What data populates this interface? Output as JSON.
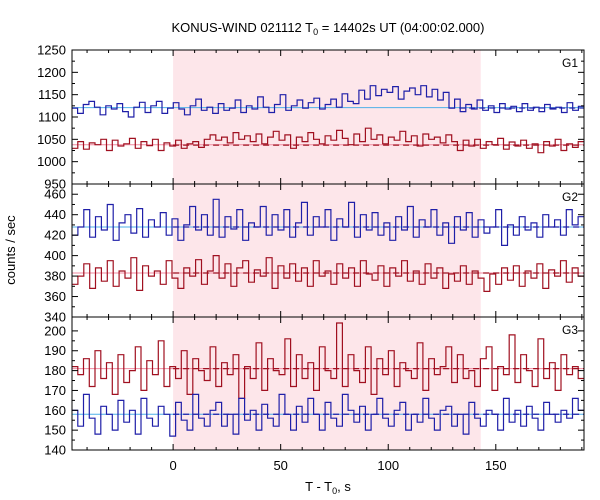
{
  "chart_data": {
    "type": "line",
    "title_main": "KONUS-WIND 021112 T",
    "title_sub": "0",
    "title_rest": " = 14402s UT (04:00:02.000)",
    "xlabel_main": "T - T",
    "xlabel_sub": "0",
    "xlabel_rest": ", s",
    "ylabel": "counts / sec",
    "xlim": [
      -47,
      191
    ],
    "x_ticks": [
      0,
      50,
      100,
      150
    ],
    "highlight_interval": [
      0,
      143
    ],
    "colors": {
      "blue": "#1f1fa8",
      "red": "#a01020",
      "bg_blue": "#4fb0e8",
      "bg_red": "#f08aa0",
      "highlight": "#fde6ea"
    },
    "panels": [
      {
        "label": "G1",
        "ylim": [
          950,
          1250
        ],
        "y_ticks": [
          950,
          1000,
          1050,
          1100,
          1150,
          1200,
          1250
        ],
        "series": [
          {
            "color": "blue",
            "background": 1121,
            "bg_dashed_from": 133,
            "bg_dashed_to": 191,
            "bg_dashed_value": 1120,
            "values": [
              1120,
              1108,
              1128,
              1135,
              1122,
              1105,
              1125,
              1118,
              1130,
              1112,
              1100,
              1122,
              1133,
              1110,
              1125,
              1135,
              1108,
              1120,
              1132,
              1118,
              1105,
              1125,
              1140,
              1115,
              1122,
              1108,
              1130,
              1115,
              1120,
              1138,
              1110,
              1125,
              1118,
              1145,
              1122,
              1110,
              1128,
              1150,
              1115,
              1125,
              1138,
              1120,
              1132,
              1142,
              1118,
              1128,
              1140,
              1122,
              1152,
              1135,
              1130,
              1160,
              1140,
              1170,
              1148,
              1162,
              1155,
              1168,
              1140,
              1158,
              1165,
              1150,
              1170,
              1145,
              1162,
              1138,
              1155,
              1120,
              1140,
              1112,
              1128,
              1118,
              1138,
              1115,
              1125,
              1110,
              1130,
              1118,
              1124,
              1112,
              1130,
              1115,
              1122,
              1112,
              1128,
              1118,
              1122,
              1110,
              1132,
              1115,
              1124
            ]
          },
          {
            "color": "red",
            "background": 1038,
            "bg_dashed_from": 0,
            "bg_dashed_to": 191,
            "bg_dashed_value": 1037,
            "values": [
              1030,
              1045,
              1028,
              1042,
              1038,
              1050,
              1025,
              1048,
              1035,
              1040,
              1052,
              1030,
              1045,
              1036,
              1050,
              1025,
              1042,
              1035,
              1048,
              1030,
              1040,
              1045,
              1032,
              1050,
              1060,
              1048,
              1055,
              1042,
              1065,
              1050,
              1058,
              1045,
              1062,
              1040,
              1055,
              1068,
              1048,
              1060,
              1030,
              1055,
              1045,
              1065,
              1050,
              1040,
              1058,
              1048,
              1070,
              1052,
              1038,
              1062,
              1045,
              1075,
              1050,
              1060,
              1040,
              1055,
              1048,
              1068,
              1045,
              1058,
              1035,
              1062,
              1050,
              1055,
              1042,
              1060,
              1045,
              1025,
              1048,
              1035,
              1050,
              1030,
              1045,
              1038,
              1052,
              1028,
              1044,
              1035,
              1048,
              1030,
              1040,
              1020,
              1045,
              1035,
              1050,
              1025,
              1040,
              1032,
              1045
            ]
          }
        ]
      },
      {
        "label": "G2",
        "ylim": [
          340,
          470
        ],
        "y_ticks": [
          340,
          360,
          380,
          400,
          420,
          440,
          460
        ],
        "series": [
          {
            "color": "blue",
            "background": 428,
            "bg_dashed_from": 0,
            "bg_dashed_to": 191,
            "bg_dashed_value": 428,
            "values": [
              420,
              428,
              445,
              418,
              438,
              425,
              450,
              415,
              432,
              440,
              422,
              446,
              418,
              435,
              428,
              442,
              420,
              436,
              415,
              430,
              448,
              425,
              440,
              420,
              455,
              418,
              438,
              426,
              445,
              415,
              432,
              428,
              448,
              420,
              440,
              425,
              445,
              418,
              432,
              452,
              420,
              438,
              428,
              445,
              415,
              436,
              428,
              452,
              418,
              440,
              425,
              442,
              420,
              432,
              415,
              438,
              425,
              448,
              418,
              435,
              428,
              445,
              420,
              432,
              412,
              438,
              425,
              442,
              418,
              435,
              422,
              428,
              445,
              410,
              430,
              420,
              438,
              425,
              432,
              418,
              440,
              428,
              435,
              420,
              445,
              430,
              438
            ]
          },
          {
            "color": "red",
            "background": 383,
            "bg_dashed_from": 0,
            "bg_dashed_to": 191,
            "bg_dashed_value": 383,
            "values": [
              372,
              380,
              392,
              368,
              388,
              375,
              395,
              370,
              385,
              378,
              398,
              366,
              390,
              380,
              385,
              372,
              395,
              378,
              368,
              388,
              380,
              396,
              372,
              385,
              400,
              378,
              392,
              370,
              388,
              395,
              374,
              386,
              380,
              398,
              368,
              390,
              378,
              392,
              375,
              388,
              370,
              395,
              380,
              385,
              372,
              392,
              378,
              388,
              370,
              395,
              382,
              376,
              390,
              370,
              388,
              380,
              395,
              375,
              385,
              372,
              392,
              378,
              388,
              368,
              382,
              375,
              390,
              372,
              385,
              378,
              365,
              382,
              372,
              388,
              376,
              390,
              370,
              385,
              378,
              392,
              368,
              386,
              380,
              395,
              374,
              388,
              380
            ]
          }
        ]
      },
      {
        "label": "G3",
        "ylim": [
          140,
          207
        ],
        "y_ticks": [
          140,
          150,
          160,
          170,
          180,
          190,
          200
        ],
        "series": [
          {
            "color": "red",
            "background": 181,
            "bg_dashed_from": 0,
            "bg_dashed_to": 191,
            "bg_dashed_value": 181,
            "values": [
              182,
              178,
              186,
              172,
              190,
              176,
              184,
              168,
              188,
              174,
              180,
              192,
              170,
              185,
              178,
              195,
              172,
              182,
              176,
              190,
              168,
              186,
              180,
              175,
              192,
              172,
              184,
              178,
              188,
              166,
              182,
              176,
              194,
              170,
              186,
              180,
              178,
              196,
              172,
              188,
              176,
              184,
              170,
              192,
              180,
              176,
              204,
              172,
              188,
              180,
              174,
              192,
              168,
              186,
              178,
              190,
              172,
              184,
              180,
              176,
              194,
              170,
              186,
              178,
              182,
              192,
              174,
              188,
              176,
              180,
              172,
              186,
              192,
              170,
              182,
              178,
              198,
              174,
              188,
              180,
              172,
              196,
              176,
              184,
              170,
              188,
              178,
              182,
              176
            ]
          },
          {
            "color": "blue",
            "background": 158,
            "bg_dashed_from": 0,
            "bg_dashed_to": 191,
            "bg_dashed_value": 158,
            "values": [
              160,
              152,
              168,
              156,
              148,
              162,
              158,
              150,
              165,
              154,
              160,
              148,
              166,
              156,
              152,
              162,
              158,
              147,
              164,
              155,
              150,
              168,
              156,
              152,
              160,
              164,
              152,
              158,
              148,
              166,
              155,
              160,
              150,
              163,
              156,
              152,
              168,
              158,
              150,
              162,
              154,
              166,
              158,
              150,
              164,
              156,
              152,
              168,
              160,
              154,
              162,
              150,
              158,
              166,
              156,
              152,
              160,
              164,
              150,
              158,
              154,
              166,
              156,
              150,
              160,
              162,
              152,
              158,
              148,
              164,
              156,
              152,
              160,
              158,
              150,
              166,
              154,
              160,
              152,
              162,
              156,
              150,
              164,
              158,
              154,
              160,
              156,
              166,
              160
            ]
          }
        ]
      }
    ]
  }
}
